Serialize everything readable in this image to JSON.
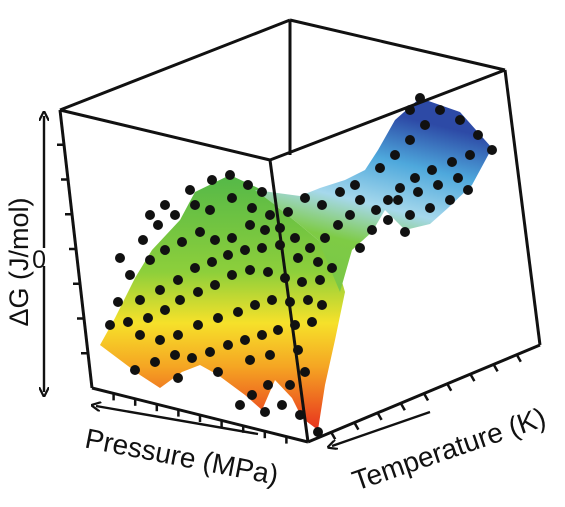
{
  "chart_data": {
    "type": "surface",
    "xlabel": "Pressure (MPa)",
    "ylabel": "Temperature (K)",
    "zlabel": "ΔG (J/mol)",
    "z_ticks": [
      "0"
    ],
    "grid": false,
    "legend": "none",
    "colormap": [
      "#e8321e",
      "#f5a623",
      "#f6e12a",
      "#8dcf3b",
      "#54b848",
      "#a6d8ec",
      "#4ea8dc",
      "#2d4aa6"
    ],
    "point_color": "#111111"
  }
}
